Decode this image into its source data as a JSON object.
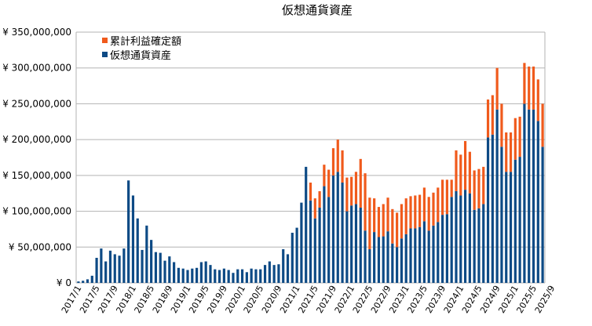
{
  "chart_data": {
    "type": "bar",
    "stacked": true,
    "title": "仮想通貨資産",
    "y_unit": "円",
    "ylim": [
      0,
      350000000
    ],
    "ytick_values": [
      0,
      50000000,
      100000000,
      150000000,
      200000000,
      250000000,
      300000000,
      350000000
    ],
    "ytick_labels": [
      "¥ 0",
      "¥ 50,000,000",
      "¥ 100,000,000",
      "¥ 150,000,000",
      "¥ 200,000,000",
      "¥ 250,000,000",
      "¥ 300,000,000",
      "¥ 350,000,000"
    ],
    "grid": true,
    "legend_position": "top-left",
    "x_start": "2017/1",
    "x_tick_step": 4,
    "xtick_labels": [
      "2017/1",
      "2017/5",
      "2017/9",
      "2018/1",
      "2018/5",
      "2018/9",
      "2019/1",
      "2019/5",
      "2019/9",
      "2020/1",
      "2020/5",
      "2020/9",
      "2021/1",
      "2021/5",
      "2021/9",
      "2022/1",
      "2022/5",
      "2022/9",
      "2023/1",
      "2023/5",
      "2023/9",
      "2024/1",
      "2024/5",
      "2024/9",
      "2025/1",
      "2025/5",
      "2025/9"
    ],
    "series": [
      {
        "name": "仮想通貨資産",
        "color": "#0d4a85",
        "values": [
          2000000,
          3000000,
          5000000,
          10000000,
          35000000,
          48000000,
          30000000,
          45000000,
          40000000,
          38000000,
          48000000,
          143000000,
          122000000,
          90000000,
          46000000,
          80000000,
          60000000,
          43000000,
          42000000,
          31000000,
          37000000,
          29000000,
          21000000,
          20000000,
          18000000,
          20000000,
          21000000,
          29000000,
          30000000,
          25000000,
          19000000,
          18000000,
          20000000,
          18000000,
          14000000,
          19000000,
          19000000,
          15000000,
          20000000,
          19000000,
          19000000,
          25000000,
          30000000,
          25000000,
          26000000,
          47000000,
          40000000,
          70000000,
          77000000,
          112000000,
          162000000,
          115000000,
          90000000,
          105000000,
          135000000,
          120000000,
          150000000,
          155000000,
          140000000,
          100000000,
          108000000,
          110000000,
          105000000,
          73000000,
          47000000,
          71000000,
          64000000,
          65000000,
          72000000,
          55000000,
          50000000,
          62000000,
          68000000,
          76000000,
          76000000,
          78000000,
          86000000,
          73000000,
          80000000,
          85000000,
          95000000,
          96000000,
          120000000,
          128000000,
          122000000,
          130000000,
          125000000,
          102000000,
          104000000,
          110000000,
          203000000,
          207000000,
          242000000,
          190000000,
          155000000,
          155000000,
          172000000,
          176000000,
          250000000,
          242000000,
          242000000,
          226000000,
          190000000
        ]
      },
      {
        "name": "累計利益確定額",
        "color": "#f05a1c",
        "values": [
          0,
          0,
          0,
          0,
          0,
          0,
          0,
          0,
          0,
          0,
          0,
          0,
          0,
          0,
          0,
          0,
          0,
          0,
          0,
          0,
          0,
          0,
          0,
          0,
          0,
          0,
          0,
          0,
          0,
          0,
          0,
          0,
          0,
          0,
          0,
          0,
          0,
          0,
          0,
          0,
          0,
          0,
          0,
          0,
          0,
          0,
          0,
          0,
          0,
          0,
          0,
          25000000,
          28000000,
          23000000,
          30000000,
          38000000,
          38000000,
          45000000,
          45000000,
          47000000,
          40000000,
          45000000,
          68000000,
          80000000,
          72000000,
          47000000,
          42000000,
          45000000,
          47000000,
          48000000,
          48000000,
          48000000,
          50000000,
          45000000,
          46000000,
          45000000,
          47000000,
          47000000,
          46000000,
          48000000,
          49000000,
          48000000,
          24000000,
          57000000,
          57000000,
          68000000,
          58000000,
          55000000,
          55000000,
          52000000,
          53000000,
          55000000,
          58000000,
          60000000,
          55000000,
          55000000,
          58000000,
          56000000,
          57000000,
          60000000,
          60000000,
          58000000,
          60000000
        ]
      }
    ]
  }
}
